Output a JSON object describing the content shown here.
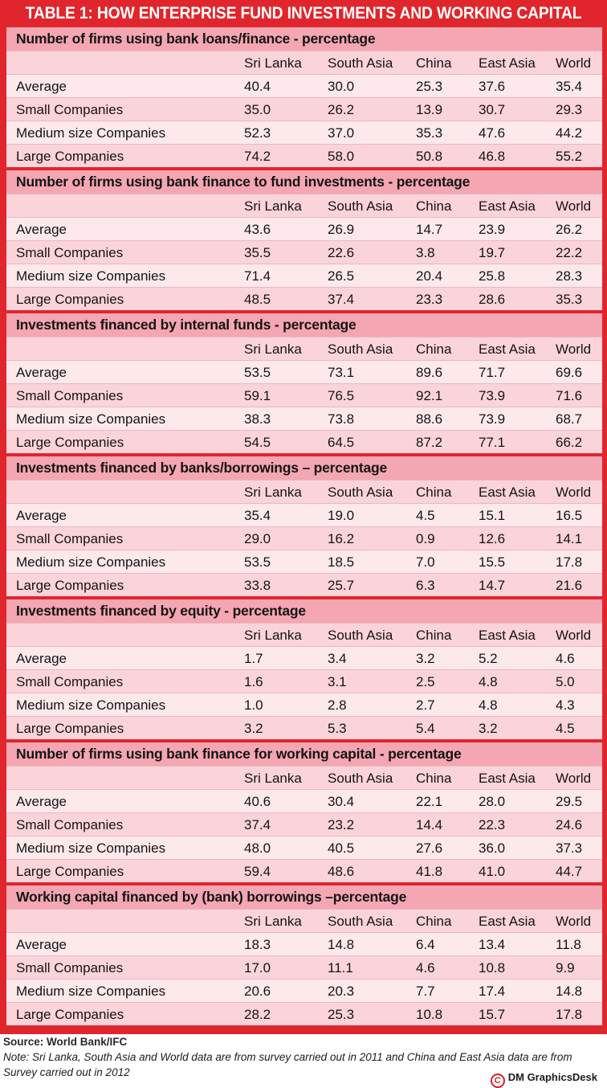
{
  "title": "TABLE 1: HOW ENTERPRISE FUND INVESTMENTS AND WORKING CAPITAL",
  "columns": [
    "Sri Lanka",
    "South Asia",
    "China",
    "East Asia",
    "World"
  ],
  "sections": [
    {
      "title": "Number of firms using bank loans/finance - percentage",
      "rows": [
        {
          "label": "Average",
          "values": [
            "40.4",
            "30.0",
            "25.3",
            "37.6",
            "35.4"
          ]
        },
        {
          "label": "Small Companies",
          "values": [
            "35.0",
            "26.2",
            "13.9",
            "30.7",
            "29.3"
          ]
        },
        {
          "label": "Medium size Companies",
          "values": [
            "52.3",
            "37.0",
            "35.3",
            "47.6",
            "44.2"
          ]
        },
        {
          "label": "Large Companies",
          "values": [
            "74.2",
            "58.0",
            "50.8",
            "46.8",
            "55.2"
          ]
        }
      ]
    },
    {
      "title": "Number of firms using bank finance to fund investments - percentage",
      "rows": [
        {
          "label": "Average",
          "values": [
            "43.6",
            "26.9",
            "14.7",
            "23.9",
            "26.2"
          ]
        },
        {
          "label": "Small Companies",
          "values": [
            "35.5",
            "22.6",
            "3.8",
            "19.7",
            "22.2"
          ]
        },
        {
          "label": "Medium size Companies",
          "values": [
            "71.4",
            "26.5",
            "20.4",
            "25.8",
            "28.3"
          ]
        },
        {
          "label": "Large Companies",
          "values": [
            "48.5",
            "37.4",
            "23.3",
            "28.6",
            "35.3"
          ]
        }
      ]
    },
    {
      "title": "Investments financed by internal funds - percentage",
      "rows": [
        {
          "label": "Average",
          "values": [
            "53.5",
            "73.1",
            "89.6",
            "71.7",
            "69.6"
          ]
        },
        {
          "label": "Small Companies",
          "values": [
            "59.1",
            "76.5",
            "92.1",
            "73.9",
            "71.6"
          ]
        },
        {
          "label": "Medium size Companies",
          "values": [
            "38.3",
            "73.8",
            "88.6",
            "73.9",
            "68.7"
          ]
        },
        {
          "label": "Large Companies",
          "values": [
            "54.5",
            "64.5",
            "87.2",
            "77.1",
            "66.2"
          ]
        }
      ]
    },
    {
      "title": "Investments financed by banks/borrowings – percentage",
      "rows": [
        {
          "label": "Average",
          "values": [
            "35.4",
            "19.0",
            "4.5",
            "15.1",
            "16.5"
          ]
        },
        {
          "label": "Small Companies",
          "values": [
            "29.0",
            "16.2",
            "0.9",
            "12.6",
            "14.1"
          ]
        },
        {
          "label": "Medium size Companies",
          "values": [
            "53.5",
            "18.5",
            "7.0",
            "15.5",
            "17.8"
          ]
        },
        {
          "label": "Large Companies",
          "values": [
            "33.8",
            "25.7",
            "6.3",
            "14.7",
            "21.6"
          ]
        }
      ]
    },
    {
      "title": "Investments financed by equity - percentage",
      "rows": [
        {
          "label": "Average",
          "values": [
            "1.7",
            "3.4",
            "3.2",
            "5.2",
            "4.6"
          ]
        },
        {
          "label": "Small Companies",
          "values": [
            "1.6",
            "3.1",
            "2.5",
            "4.8",
            "5.0"
          ]
        },
        {
          "label": "Medium size Companies",
          "values": [
            "1.0",
            "2.8",
            "2.7",
            "4.8",
            "4.3"
          ]
        },
        {
          "label": "Large Companies",
          "values": [
            "3.2",
            "5.3",
            "5.4",
            "3.2",
            "4.5"
          ]
        }
      ]
    },
    {
      "title": "Number of firms using bank finance for working capital - percentage",
      "rows": [
        {
          "label": "Average",
          "values": [
            "40.6",
            "30.4",
            "22.1",
            "28.0",
            "29.5"
          ]
        },
        {
          "label": "Small Companies",
          "values": [
            "37.4",
            "23.2",
            "14.4",
            "22.3",
            "24.6"
          ]
        },
        {
          "label": "Medium size Companies",
          "values": [
            "48.0",
            "40.5",
            "27.6",
            "36.0",
            "37.3"
          ]
        },
        {
          "label": "Large Companies",
          "values": [
            "59.4",
            "48.6",
            "41.8",
            "41.0",
            "44.7"
          ]
        }
      ]
    },
    {
      "title": "Working capital financed by (bank) borrowings –percentage",
      "rows": [
        {
          "label": "Average",
          "values": [
            "18.3",
            "14.8",
            "6.4",
            "13.4",
            "11.8"
          ]
        },
        {
          "label": "Small Companies",
          "values": [
            "17.0",
            "11.1",
            "4.6",
            "10.8",
            "9.9"
          ]
        },
        {
          "label": "Medium size Companies",
          "values": [
            "20.6",
            "20.3",
            "7.7",
            "17.4",
            "14.8"
          ]
        },
        {
          "label": "Large Companies",
          "values": [
            "28.2",
            "25.3",
            "10.8",
            "15.7",
            "17.8"
          ]
        }
      ]
    }
  ],
  "footer": {
    "source": "Source: World Bank/IFC",
    "note": "Note: Sri Lanka, South Asia and World data are from survey carried out in 2011 and China and East Asia data are from Survey carried out in 2012",
    "credit": "DM GraphicsDesk",
    "credit_icon": "copyright-icon",
    "credit_symbol": "C"
  },
  "colors": {
    "frame": "#e0262c",
    "section_header": "#f4a6b2",
    "row_light": "#fde9ec",
    "row_mid": "#fbd3da"
  }
}
